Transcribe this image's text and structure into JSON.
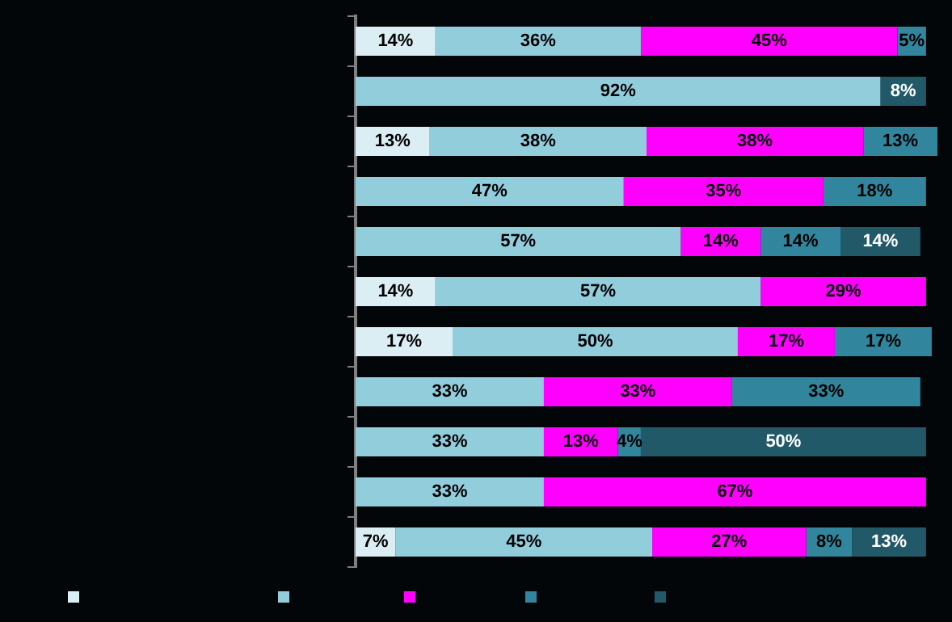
{
  "chart_data": {
    "type": "bar",
    "orientation": "horizontal",
    "stacked": true,
    "relative": false,
    "categories": [
      null,
      null,
      null,
      null,
      null,
      null,
      null,
      null,
      null,
      null,
      null
    ],
    "series": [
      {
        "color": "#dbeef3",
        "values": [
          14,
          null,
          13,
          null,
          null,
          14,
          17,
          null,
          null,
          null,
          7
        ],
        "value_labels": [
          "14%",
          null,
          "13%",
          null,
          null,
          "14%",
          "17%",
          null,
          null,
          null,
          "7%"
        ]
      },
      {
        "color": "#92cddc",
        "values": [
          36,
          92,
          38,
          47,
          57,
          57,
          50,
          33,
          33,
          33,
          45
        ],
        "value_labels": [
          "36%",
          "92%",
          "38%",
          "47%",
          "57%",
          "57%",
          "50%",
          "33%",
          "33%",
          "33%",
          "45%"
        ]
      },
      {
        "color": "#ff00ff",
        "values": [
          45,
          null,
          38,
          35,
          14,
          29,
          17,
          33,
          13,
          67,
          27
        ],
        "value_labels": [
          "45%",
          null,
          "38%",
          "35%",
          "14%",
          "29%",
          "17%",
          "33%",
          "13%",
          "67%",
          "27%"
        ]
      },
      {
        "color": "#31859c",
        "values": [
          5,
          null,
          13,
          18,
          14,
          null,
          17,
          33,
          4,
          null,
          8
        ],
        "value_labels": [
          "5%",
          null,
          "13%",
          "18%",
          "14%",
          null,
          "17%",
          "33%",
          "4%",
          null,
          "8%"
        ]
      },
      {
        "color": "#215968",
        "values": [
          null,
          8,
          null,
          null,
          14,
          null,
          null,
          null,
          50,
          null,
          13
        ],
        "value_labels": [
          null,
          "8%",
          null,
          null,
          "14%",
          null,
          null,
          null,
          "50%",
          null,
          "13%"
        ]
      }
    ],
    "tick_labels": false
  }
}
